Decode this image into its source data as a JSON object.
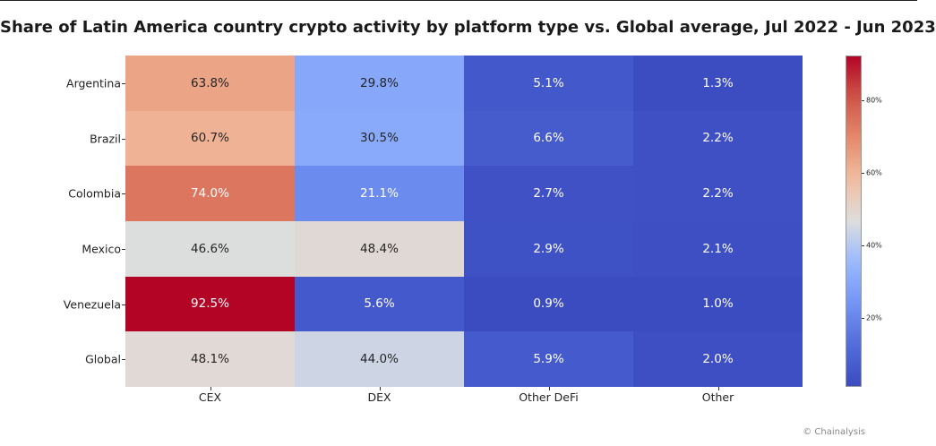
{
  "chart_data": {
    "type": "heatmap",
    "title": "Share of Latin America country crypto activity by platform type vs. Global average, Jul 2022 - Jun 2023",
    "rows": [
      "Argentina",
      "Brazil",
      "Colombia",
      "Mexico",
      "Venezuela",
      "Global"
    ],
    "columns": [
      "CEX",
      "DEX",
      "Other DeFi",
      "Other"
    ],
    "values": [
      [
        63.8,
        29.8,
        5.1,
        1.3
      ],
      [
        60.7,
        30.5,
        6.6,
        2.2
      ],
      [
        74.0,
        21.1,
        2.7,
        2.2
      ],
      [
        46.6,
        48.4,
        2.9,
        2.1
      ],
      [
        92.5,
        5.6,
        0.9,
        1.0
      ],
      [
        48.1,
        44.0,
        5.9,
        2.0
      ]
    ],
    "labels": [
      [
        "63.8%",
        "29.8%",
        "5.1%",
        "1.3%"
      ],
      [
        "60.7%",
        "30.5%",
        "6.6%",
        "2.2%"
      ],
      [
        "74.0%",
        "21.1%",
        "2.7%",
        "2.2%"
      ],
      [
        "46.6%",
        "48.4%",
        "2.9%",
        "2.1%"
      ],
      [
        "92.5%",
        "5.6%",
        "0.9%",
        "1.0%"
      ],
      [
        "48.1%",
        "44.0%",
        "5.9%",
        "2.0%"
      ]
    ],
    "colormap": "coolwarm",
    "colorbar": {
      "range": [
        0.9,
        92.5
      ],
      "ticks": [
        20,
        40,
        60,
        80
      ],
      "tick_labels": [
        "20%",
        "40%",
        "60%",
        "80%"
      ]
    }
  },
  "credit": "© Chainalysis"
}
